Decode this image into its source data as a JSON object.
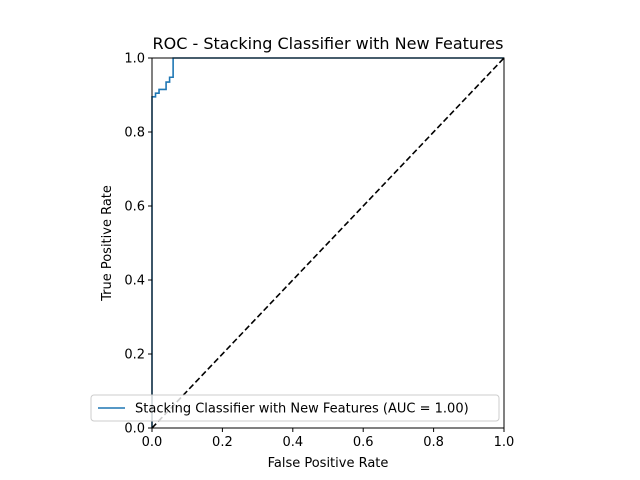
{
  "chart_data": {
    "type": "line",
    "title": "ROC - Stacking Classifier with New Features",
    "xlabel": "False Positive Rate",
    "ylabel": "True Positive Rate",
    "xlim": [
      0,
      1
    ],
    "ylim": [
      0,
      1
    ],
    "x_ticks": [
      "0.0",
      "0.2",
      "0.4",
      "0.6",
      "0.8",
      "1.0"
    ],
    "y_ticks": [
      "0.0",
      "0.2",
      "0.4",
      "0.6",
      "0.8",
      "1.0"
    ],
    "grid": false,
    "legend_position": "lower-right",
    "series": [
      {
        "name": "Stacking Classifier with New Features (AUC = 1.00)",
        "color": "#1f77b4",
        "style": "solid",
        "x": [
          0,
          0,
          0.01,
          0.01,
          0.02,
          0.02,
          0.04,
          0.04,
          0.05,
          0.05,
          0.06,
          0.06,
          1.0
        ],
        "y": [
          0,
          0.895,
          0.895,
          0.905,
          0.905,
          0.915,
          0.915,
          0.935,
          0.935,
          0.948,
          0.948,
          1.0,
          1.0
        ]
      },
      {
        "name": "",
        "color": "#000000",
        "style": "dashed",
        "x": [
          0,
          1
        ],
        "y": [
          0,
          1
        ]
      }
    ]
  }
}
